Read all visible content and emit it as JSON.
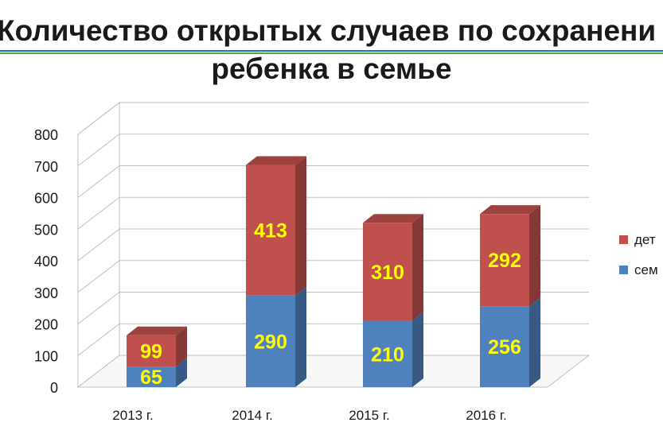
{
  "title": {
    "line1": "Количество открытых случаев по сохранени",
    "line2": "ребенка в семье"
  },
  "colors": {
    "series_red": "#c0504d",
    "series_blue": "#4f81bd",
    "label": "#ffff00",
    "title_rule_blue": "#2e6fb0",
    "title_rule_green": "#4fa84a"
  },
  "chart_data": {
    "type": "bar",
    "stacked": true,
    "three_d": true,
    "categories": [
      "2013 г.",
      "2014 г.",
      "2015 г.",
      "2016 г."
    ],
    "series": [
      {
        "name": "сем",
        "color": "#4f81bd",
        "values": [
          65,
          290,
          210,
          256
        ]
      },
      {
        "name": "дет",
        "color": "#c0504d",
        "values": [
          99,
          413,
          310,
          292
        ]
      }
    ],
    "ylim": [
      0,
      800
    ],
    "yticks": [
      0,
      100,
      200,
      300,
      400,
      500,
      600,
      700,
      800
    ],
    "grid": true,
    "legend_position": "right",
    "data_labels": true
  }
}
